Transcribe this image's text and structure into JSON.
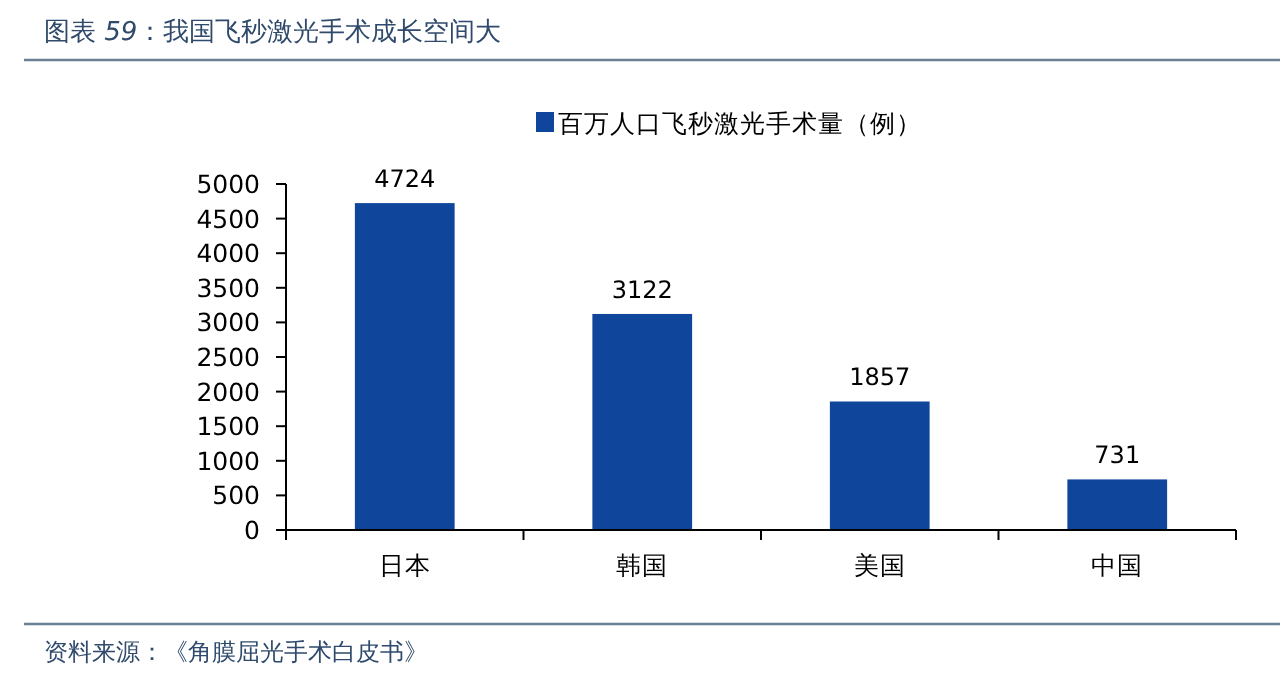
{
  "chart_data": {
    "type": "bar",
    "title": "图表 *59*：我国飞秒激光手术成长空间大",
    "categories": [
      "日本",
      "韩国",
      "美国",
      "中国"
    ],
    "series": [
      {
        "name": "百万人口飞秒激光手术量（例）",
        "color": "#0f469b",
        "values": [
          4724,
          3122,
          1857,
          731
        ]
      }
    ],
    "ylim": [
      0,
      5000
    ],
    "yticks": [
      0,
      500,
      1000,
      1500,
      2000,
      2500,
      3000,
      3500,
      4000,
      4500,
      5000
    ],
    "data_labels": true,
    "legend": "top right",
    "grid": false,
    "annotations": [
      "资料来源：《角膜屈光手术白皮书》"
    ]
  }
}
